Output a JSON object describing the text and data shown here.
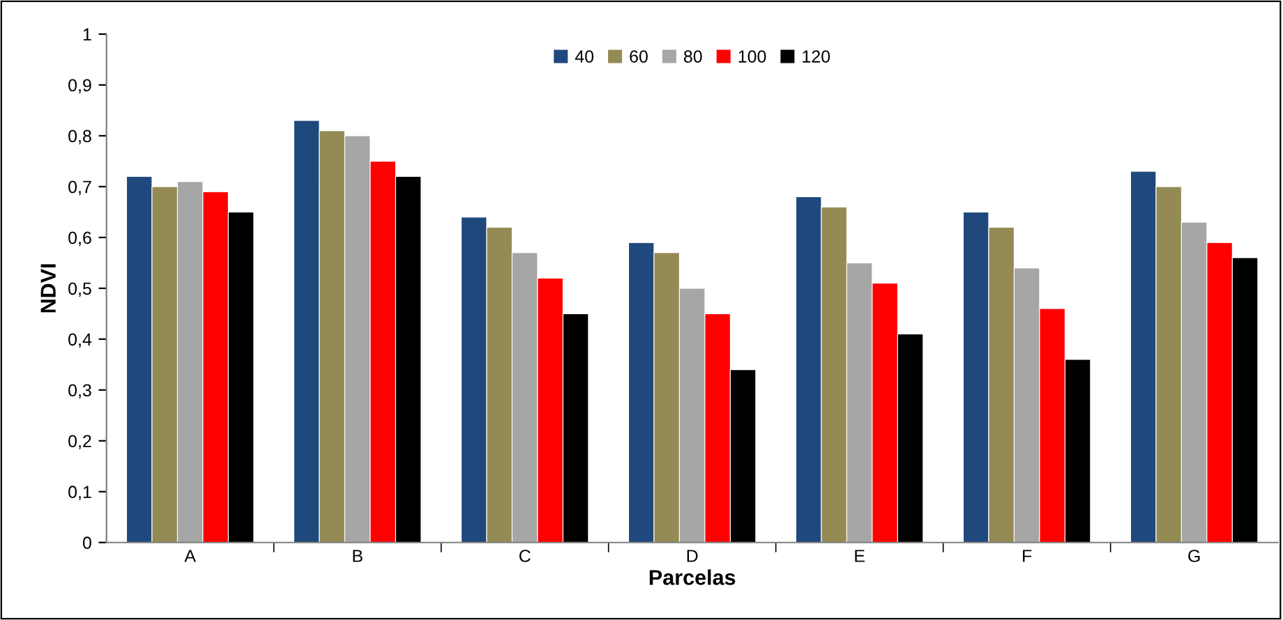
{
  "chart_data": {
    "type": "bar",
    "xlabel": "Parcelas",
    "ylabel": "NDVI",
    "categories": [
      "A",
      "B",
      "C",
      "D",
      "E",
      "F",
      "G"
    ],
    "series": [
      {
        "name": "40",
        "color": "#1f497d",
        "values": [
          0.72,
          0.83,
          0.64,
          0.59,
          0.68,
          0.65,
          0.73
        ]
      },
      {
        "name": "60",
        "color": "#948a54",
        "values": [
          0.7,
          0.81,
          0.62,
          0.57,
          0.66,
          0.62,
          0.7
        ]
      },
      {
        "name": "80",
        "color": "#a6a6a6",
        "values": [
          0.71,
          0.8,
          0.57,
          0.5,
          0.55,
          0.54,
          0.63
        ]
      },
      {
        "name": "100",
        "color": "#ff0000",
        "values": [
          0.69,
          0.75,
          0.52,
          0.45,
          0.51,
          0.46,
          0.59
        ]
      },
      {
        "name": "120",
        "color": "#000000",
        "values": [
          0.65,
          0.72,
          0.45,
          0.34,
          0.41,
          0.36,
          0.56
        ]
      }
    ],
    "ylim": [
      0,
      1
    ],
    "yticks": [
      0,
      {
        "value": 0.1,
        "label": "0,1"
      },
      {
        "value": 0.2,
        "label": "0,2"
      },
      {
        "value": 0.3,
        "label": "0,3"
      },
      {
        "value": 0.4,
        "label": "0,4"
      },
      {
        "value": 0.5,
        "label": "0,5"
      },
      {
        "value": 0.6,
        "label": "0,6"
      },
      {
        "value": 0.7,
        "label": "0,7"
      },
      {
        "value": 0.8,
        "label": "0,8"
      },
      {
        "value": 0.9,
        "label": "0,9"
      },
      1
    ],
    "grid": false,
    "legend": "top"
  }
}
